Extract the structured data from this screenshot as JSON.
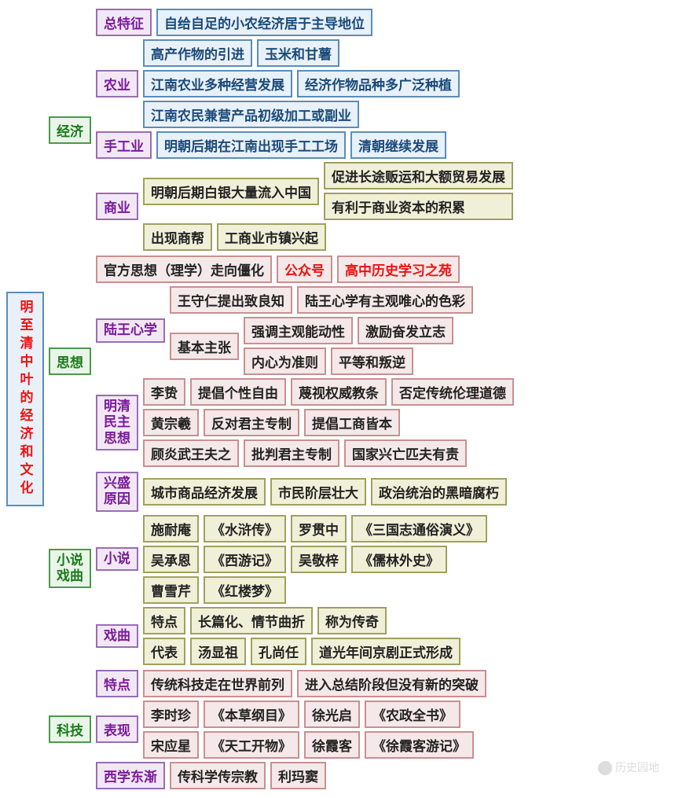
{
  "root": "明至清中叶的经济和文化",
  "economy": {
    "label": "经济",
    "zong": {
      "label": "总特征",
      "items": [
        "自给自足的小农经济居于主导地位"
      ]
    },
    "nong": {
      "label": "农业",
      "r1": [
        "高产作物的引进",
        "玉米和甘薯"
      ],
      "r2": [
        "江南农业多种经营发展",
        "经济作物品种多广泛种植"
      ],
      "r3": [
        "江南农民兼营产品初级加工或副业"
      ]
    },
    "shou": {
      "label": "手工业",
      "items": [
        "明朝后期在江南出现手工工场",
        "清朝继续发展"
      ]
    },
    "shang": {
      "label": "商业",
      "left": "明朝后期白银大量流入中国",
      "right": [
        "促进长途贩运和大额贸易发展",
        "有利于商业资本的积累"
      ],
      "r2": [
        "出现商帮",
        "工商业市镇兴起"
      ]
    }
  },
  "thought": {
    "label": "思想",
    "top": [
      "官方思想（理学）走向僵化",
      "公众号",
      "高中历史学习之苑"
    ],
    "lw": {
      "label": "陆王心学",
      "r1": [
        "王守仁提出致良知",
        "陆王心学有主观唯心的色彩"
      ],
      "jb": "基本主张",
      "jr1": [
        "强调主观能动性",
        "激励奋发立志"
      ],
      "jr2": [
        "内心为准则",
        "平等和叛逆"
      ]
    },
    "mq": {
      "label": "明清\n民主\n思想",
      "r1": [
        "李贽",
        "提倡个性自由",
        "蔑视权威教条",
        "否定传统伦理道德"
      ],
      "r2": [
        "黄宗羲",
        "反对君主专制",
        "提倡工商皆本"
      ],
      "r3": [
        "顾炎武王夫之",
        "批判君主专制",
        "国家兴亡匹夫有责"
      ]
    }
  },
  "novel": {
    "label": "小说\n戏曲",
    "xs": {
      "label": "兴盛\n原因",
      "items": [
        "城市商品经济发展",
        "市民阶层壮大",
        "政治统治的黑暗腐朽"
      ]
    },
    "xiao": {
      "label": "小说",
      "r1": [
        "施耐庵",
        "《水浒传》",
        "罗贯中",
        "《三国志通俗演义》"
      ],
      "r2": [
        "吴承恩",
        "《西游记》",
        "吴敬梓",
        "《儒林外史》"
      ],
      "r3": [
        "曹雪芹",
        "《红楼梦》"
      ]
    },
    "xi": {
      "label": "戏曲",
      "r1": [
        "特点",
        "长篇化、情节曲折",
        "称为传奇"
      ],
      "r2": [
        "代表",
        "汤显祖",
        "孔尚任",
        "道光年间京剧正式形成"
      ]
    }
  },
  "tech": {
    "label": "科技",
    "td": {
      "label": "特点",
      "items": [
        "传统科技走在世界前列",
        "进入总结阶段但没有新的突破"
      ]
    },
    "bx": {
      "label": "表现",
      "r1": [
        "李时珍",
        "《本草纲目》",
        "徐光启",
        "《农政全书》"
      ],
      "r2": [
        "宋应星",
        "《天工开物》",
        "徐霞客",
        "《徐霞客游记》"
      ]
    },
    "xx": {
      "label": "西学东渐",
      "items": [
        "传科学传宗教",
        "利玛窦"
      ]
    }
  },
  "watermark": "历史园地"
}
